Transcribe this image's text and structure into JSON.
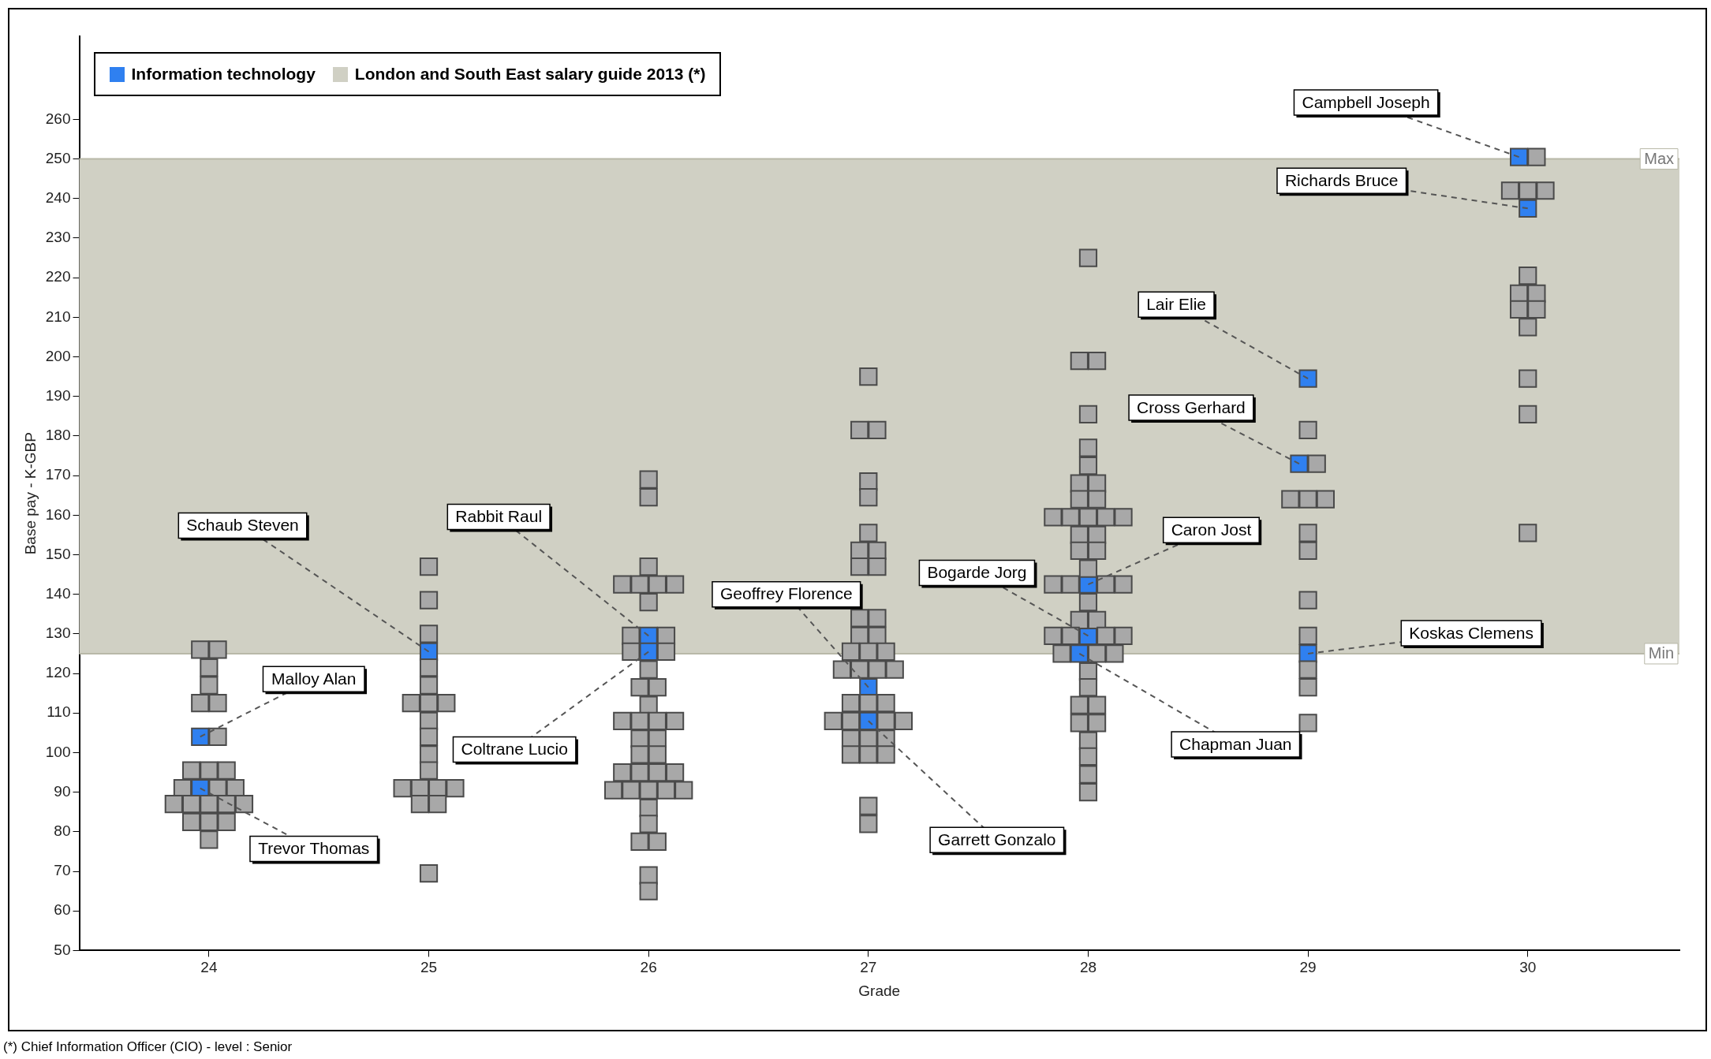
{
  "chart_data": {
    "type": "scatter",
    "xlabel": "Grade",
    "ylabel": "Base pay - K-GBP",
    "xlim": [
      23.41,
      30.69
    ],
    "ylim": [
      50,
      281
    ],
    "xticks": [
      24,
      25,
      26,
      27,
      28,
      29,
      30
    ],
    "yticks": [
      50,
      60,
      70,
      80,
      90,
      100,
      110,
      120,
      130,
      140,
      150,
      160,
      170,
      180,
      190,
      200,
      210,
      220,
      230,
      240,
      250,
      260
    ],
    "marker": "square",
    "legend": "top left",
    "series": [
      {
        "color": "#a8a8a8",
        "x": [
          23.96,
          24.04,
          24,
          24,
          23.96,
          24.04,
          24.04,
          23.92,
          24,
          24.08,
          23.88,
          24.04,
          24.12,
          23.84,
          23.92,
          24,
          24.08,
          24.16,
          23.92,
          24,
          24.08,
          24,
          25,
          25,
          25,
          25,
          25,
          24.92,
          25,
          25.08,
          25,
          25,
          25,
          25,
          24.88,
          24.96,
          25.04,
          25.12,
          24.96,
          25.04,
          25,
          26,
          26,
          26,
          25.88,
          25.96,
          26.04,
          26.12,
          26,
          25.92,
          26.08,
          25.92,
          26.08,
          26,
          25.96,
          26.04,
          26,
          25.88,
          25.96,
          26.04,
          26.12,
          25.96,
          26.04,
          25.96,
          26.04,
          25.88,
          25.96,
          26.04,
          26.12,
          25.84,
          25.92,
          26,
          26.08,
          26.16,
          26,
          26,
          25.96,
          26.04,
          26,
          26,
          27,
          26.96,
          27.04,
          27,
          27,
          27,
          26.96,
          27.04,
          26.96,
          27.04,
          26.96,
          27.04,
          26.96,
          27.04,
          26.92,
          27,
          27.08,
          26.88,
          26.96,
          27.04,
          27.12,
          26.92,
          27,
          27.08,
          26.84,
          26.92,
          27.08,
          27.16,
          26.92,
          27,
          27.08,
          26.92,
          27,
          27.08,
          27,
          27,
          28,
          27.96,
          28.04,
          28,
          28,
          28,
          27.96,
          28.04,
          27.96,
          28.04,
          27.84,
          27.92,
          28,
          28.08,
          28.16,
          27.96,
          28.04,
          27.96,
          28.04,
          28,
          27.84,
          27.92,
          28.08,
          28.16,
          28,
          27.96,
          28.04,
          27.84,
          27.92,
          28.08,
          28.16,
          27.88,
          28.04,
          28.12,
          28,
          28,
          27.96,
          28.04,
          27.96,
          28.04,
          28,
          28,
          28,
          28,
          29,
          29.04,
          28.92,
          29,
          29.08,
          29,
          29,
          29,
          29,
          29,
          29,
          29,
          30.04,
          29.92,
          30,
          30.08,
          30,
          29.96,
          30.04,
          29.96,
          30.04,
          30,
          30,
          30,
          30
        ],
        "values": [
          126,
          126,
          121.5,
          117,
          112.5,
          112.5,
          104,
          95.5,
          95.5,
          95.5,
          91,
          91,
          91,
          87,
          87,
          87,
          87,
          87,
          82.5,
          82.5,
          82.5,
          78,
          147,
          138.5,
          130,
          121.5,
          117,
          112.5,
          112.5,
          112.5,
          108,
          104,
          99.5,
          95.5,
          91,
          91,
          91,
          91,
          87,
          87,
          69.5,
          169,
          164.5,
          147,
          142.5,
          142.5,
          142.5,
          142.5,
          138,
          129.5,
          129.5,
          125.5,
          125.5,
          121,
          116.5,
          116.5,
          112,
          108,
          108,
          108,
          108,
          103.5,
          103.5,
          99.5,
          99.5,
          95,
          95,
          95,
          95,
          90.5,
          90.5,
          90.5,
          90.5,
          90.5,
          86,
          82,
          77.5,
          77.5,
          69,
          65,
          195,
          181.5,
          181.5,
          168.5,
          164.5,
          155.5,
          151,
          151,
          147,
          147,
          134,
          134,
          129.5,
          129.5,
          125.5,
          125.5,
          125.5,
          121,
          121,
          121,
          121,
          112.5,
          112.5,
          112.5,
          108,
          108,
          108,
          108,
          103.5,
          103.5,
          103.5,
          99.5,
          99.5,
          99.5,
          86.5,
          82,
          225,
          199,
          199,
          185.5,
          177,
          172.5,
          168,
          168,
          164,
          164,
          159.5,
          159.5,
          159.5,
          159.5,
          159.5,
          155,
          155,
          151,
          151,
          146.5,
          142.5,
          142.5,
          142.5,
          142.5,
          138,
          133.5,
          133.5,
          129.5,
          129.5,
          129.5,
          129.5,
          125,
          125,
          125,
          120.5,
          116.5,
          112,
          112,
          107.5,
          107.5,
          103,
          99,
          94.5,
          90,
          181.5,
          173,
          164,
          164,
          164,
          155.5,
          151,
          138.5,
          129.5,
          121,
          116.5,
          107.5,
          250.5,
          242,
          242,
          242,
          220.5,
          216,
          216,
          212,
          212,
          207.5,
          194.5,
          185.5,
          155.5
        ]
      },
      {
        "name": "Information technology",
        "color": "#2f80f0",
        "x": [
          23.96,
          23.96,
          25,
          26,
          26,
          27,
          27,
          28,
          28,
          27.96,
          29,
          28.96,
          29,
          29.96,
          30
        ],
        "values": [
          104,
          91,
          125.5,
          129.5,
          125.5,
          116.5,
          108,
          142.5,
          129.5,
          125,
          194.5,
          173,
          125,
          250.5,
          237.5
        ]
      }
    ],
    "bands": [
      {
        "axis": "y",
        "from": 125,
        "to": 250,
        "color": "#d0d0c4",
        "label": "London and South East salary guide 2013 (*)"
      }
    ],
    "ref_lines": [
      {
        "axis": "y",
        "value": 250,
        "label": "Max",
        "color": "#b8b8a8"
      },
      {
        "axis": "y",
        "value": 125,
        "label": "Min",
        "color": "#b8b8a8"
      }
    ],
    "annotations": [
      {
        "text": "Malloy Alan",
        "x": 23.96,
        "y": 104
      },
      {
        "text": "Trevor Thomas",
        "x": 23.96,
        "y": 91
      },
      {
        "text": "Schaub Steven",
        "x": 25,
        "y": 125.5
      },
      {
        "text": "Rabbit Raul",
        "x": 26,
        "y": 129.5
      },
      {
        "text": "Coltrane Lucio",
        "x": 26,
        "y": 125.5
      },
      {
        "text": "Geoffrey Florence",
        "x": 27,
        "y": 116.5
      },
      {
        "text": "Garrett Gonzalo",
        "x": 27,
        "y": 108
      },
      {
        "text": "Caron Jost",
        "x": 28,
        "y": 142.5
      },
      {
        "text": "Bogarde Jorg",
        "x": 28,
        "y": 129.5
      },
      {
        "text": "Chapman Juan",
        "x": 27.96,
        "y": 125
      },
      {
        "text": "Lair Elie",
        "x": 29,
        "y": 194.5
      },
      {
        "text": "Cross Gerhard",
        "x": 28.96,
        "y": 173
      },
      {
        "text": "Koskas Clemens",
        "x": 29,
        "y": 125
      },
      {
        "text": "Campbell Joseph",
        "x": 29.96,
        "y": 250.5
      },
      {
        "text": "Richards Bruce",
        "x": 30,
        "y": 237.5
      },
      "(*) Chief Information Officer (CIO) - level  : Senior"
    ]
  }
}
